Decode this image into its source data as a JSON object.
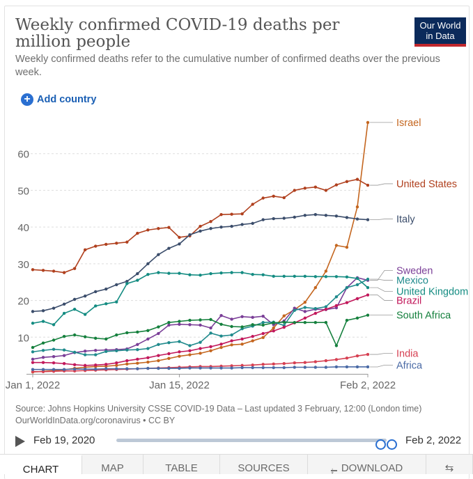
{
  "header": {
    "title": "Weekly confirmed COVID-19 deaths per million people",
    "subtitle": "Weekly confirmed deaths refer to the cumulative number of confirmed deaths over the previous week.",
    "logo_line1": "Our World",
    "logo_line2": "in Data",
    "add_country_label": "Add country"
  },
  "colors": {
    "Israel": "#c4661f",
    "United States": "#b0401e",
    "Italy": "#3b4d6b",
    "Sweden": "#7a3e97",
    "Mexico": "#1f8a8c",
    "United Kingdom": "#148c82",
    "Brazil": "#c2185b",
    "South Africa": "#15803d",
    "India": "#d64052",
    "Africa": "#4a6aa5"
  },
  "chart_data": {
    "type": "line",
    "title": "Weekly confirmed COVID-19 deaths per million people",
    "xlabel": "",
    "ylabel": "",
    "x_ticks": [
      "Jan 1, 2022",
      "Jan 15, 2022",
      "Feb 2, 2022"
    ],
    "x_tick_days": [
      0,
      14,
      32
    ],
    "x_range_days": [
      0,
      32
    ],
    "y_ticks": [
      10,
      20,
      30,
      40,
      50,
      60
    ],
    "ylim": [
      0,
      70
    ],
    "grid": true,
    "x_days": [
      -1,
      0,
      1,
      2,
      3,
      4,
      5,
      6,
      7,
      8,
      9,
      10,
      11,
      12,
      13,
      14,
      15,
      16,
      17,
      18,
      19,
      20,
      21,
      22,
      23,
      24,
      25,
      26,
      27,
      28,
      29,
      30,
      31,
      32
    ],
    "series": [
      {
        "name": "Israel",
        "values": [
          0.5,
          0.5,
          0.7,
          0.9,
          1.1,
          1.5,
          1.8,
          2.0,
          2.1,
          2.3,
          2.7,
          2.9,
          3.2,
          3.6,
          4.2,
          4.8,
          5.2,
          5.6,
          6.3,
          7.2,
          7.9,
          8.1,
          9.0,
          9.9,
          12.5,
          15.8,
          17.5,
          19.5,
          23.5,
          28.0,
          35.0,
          34.5,
          45.5,
          68.5
        ]
      },
      {
        "name": "United States",
        "values": [
          28.0,
          28.4,
          28.2,
          28.0,
          27.6,
          28.7,
          33.8,
          34.8,
          35.3,
          35.6,
          35.9,
          38.3,
          39.2,
          39.6,
          39.9,
          37.2,
          37.6,
          40.2,
          41.5,
          43.4,
          43.5,
          43.6,
          46.2,
          47.9,
          48.4,
          48.0,
          50.0,
          50.6,
          50.9,
          50.0,
          51.5,
          52.4,
          53.0,
          51.4
        ]
      },
      {
        "name": "Italy",
        "values": [
          16.2,
          17.0,
          17.2,
          17.9,
          19.0,
          20.3,
          21.2,
          22.4,
          23.1,
          24.3,
          25.2,
          27.3,
          30.0,
          32.5,
          34.2,
          35.4,
          37.9,
          38.9,
          39.6,
          40.0,
          40.2,
          40.7,
          41.0,
          42.0,
          42.3,
          42.4,
          42.7,
          43.2,
          43.4,
          43.2,
          43.0,
          42.6,
          42.2,
          42.0
        ]
      },
      {
        "name": "Sweden",
        "values": [
          4.0,
          4.0,
          4.5,
          4.7,
          5.0,
          5.8,
          6.2,
          6.4,
          6.5,
          6.6,
          6.8,
          8.0,
          9.5,
          11.0,
          13.3,
          13.5,
          13.4,
          13.3,
          12.5,
          15.9,
          14.9,
          15.6,
          15.4,
          15.7,
          13.4,
          14.4,
          17.9,
          17.0,
          17.6,
          17.5,
          18.0,
          23.5,
          26.2,
          25.5
        ]
      },
      {
        "name": "Mexico",
        "values": [
          6.0,
          6.0,
          6.4,
          6.7,
          6.5,
          5.9,
          5.2,
          5.2,
          6.1,
          6.3,
          6.5,
          6.6,
          6.9,
          8.0,
          8.5,
          8.8,
          7.7,
          8.6,
          11.1,
          10.3,
          10.6,
          12.3,
          13.0,
          14.0,
          14.1,
          13.2,
          17.3,
          18.1,
          17.8,
          18.3,
          21.0,
          23.5,
          24.3,
          25.8
        ]
      },
      {
        "name": "United Kingdom",
        "values": [
          13.1,
          13.8,
          14.3,
          13.4,
          16.5,
          17.6,
          16.2,
          18.5,
          19.1,
          19.6,
          24.6,
          25.5,
          27.1,
          27.6,
          27.4,
          27.4,
          27.0,
          26.9,
          27.3,
          27.5,
          27.6,
          27.6,
          27.1,
          27.0,
          26.6,
          26.6,
          26.6,
          26.6,
          26.5,
          26.5,
          26.5,
          26.4,
          26.0,
          23.5
        ]
      },
      {
        "name": "Brazil",
        "values": [
          3.0,
          3.1,
          3.1,
          3.0,
          2.8,
          2.5,
          2.3,
          2.4,
          2.6,
          3.0,
          3.6,
          4.0,
          4.4,
          5.0,
          5.5,
          6.0,
          6.3,
          6.9,
          7.4,
          8.1,
          9.0,
          9.5,
          10.2,
          11.0,
          11.7,
          12.7,
          13.9,
          15.2,
          16.5,
          17.6,
          18.6,
          19.4,
          20.5,
          21.5
        ]
      },
      {
        "name": "South Africa",
        "values": [
          7.0,
          7.2,
          8.4,
          9.2,
          10.2,
          10.6,
          10.1,
          9.7,
          9.5,
          10.6,
          11.2,
          11.4,
          11.8,
          12.8,
          14.0,
          14.3,
          14.6,
          14.7,
          14.8,
          13.5,
          12.9,
          12.8,
          13.4,
          13.3,
          13.9,
          14.1,
          14.0,
          14.0,
          14.0,
          14.0,
          7.7,
          14.6,
          15.2,
          16.0
        ]
      },
      {
        "name": "India",
        "values": [
          0.6,
          0.6,
          0.6,
          0.7,
          0.8,
          0.8,
          0.9,
          1.0,
          1.1,
          1.2,
          1.3,
          1.4,
          1.5,
          1.6,
          1.7,
          1.8,
          1.9,
          2.0,
          2.0,
          2.1,
          2.2,
          2.3,
          2.4,
          2.6,
          2.7,
          2.8,
          3.0,
          3.1,
          3.3,
          3.6,
          3.9,
          4.3,
          4.9,
          5.3
        ]
      },
      {
        "name": "Africa",
        "values": [
          1.2,
          1.2,
          1.2,
          1.2,
          1.2,
          1.3,
          1.3,
          1.3,
          1.4,
          1.4,
          1.4,
          1.4,
          1.5,
          1.5,
          1.5,
          1.5,
          1.6,
          1.6,
          1.6,
          1.6,
          1.6,
          1.7,
          1.7,
          1.7,
          1.7,
          1.7,
          1.8,
          1.8,
          1.8,
          1.8,
          1.9,
          1.9,
          1.9,
          1.9
        ]
      }
    ],
    "end_labels": [
      {
        "name": "Israel",
        "label_y": 68.5
      },
      {
        "name": "United States",
        "label_y": 51.8
      },
      {
        "name": "Italy",
        "label_y": 42.2
      },
      {
        "name": "Sweden",
        "label_y": 28.2
      },
      {
        "name": "Mexico",
        "label_y": 25.5
      },
      {
        "name": "United Kingdom",
        "label_y": 22.5
      },
      {
        "name": "Brazil",
        "label_y": 20.0
      },
      {
        "name": "South Africa",
        "label_y": 16.0
      },
      {
        "name": "India",
        "label_y": 5.6
      },
      {
        "name": "Africa",
        "label_y": 2.4
      }
    ]
  },
  "footer": {
    "source": "Source: Johns Hopkins University CSSE COVID-19 Data – Last updated 3 February, 12:00 (London time)",
    "url": "OurWorldInData.org/coronavirus • CC BY"
  },
  "timeline": {
    "start_label": "Feb 19, 2020",
    "end_label": "Feb 2, 2022"
  },
  "tabs": [
    {
      "label": "CHART"
    },
    {
      "label": "MAP"
    },
    {
      "label": "TABLE"
    },
    {
      "label": "SOURCES"
    },
    {
      "label": "DOWNLOAD"
    },
    {
      "label": "⇆"
    }
  ]
}
